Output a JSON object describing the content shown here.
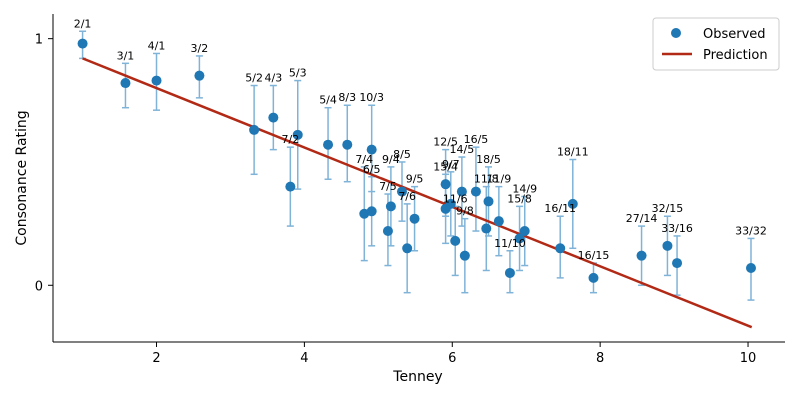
{
  "chart_data": {
    "type": "scatter",
    "xlabel": "Tenney",
    "ylabel": "Consonance Rating",
    "xlim": [
      0.6,
      10.5
    ],
    "ylim": [
      -0.23,
      1.1
    ],
    "xticks": [
      2,
      4,
      6,
      8,
      10
    ],
    "yticks": [
      0,
      1
    ],
    "legend": {
      "placement": "top-right",
      "observed": "Observed",
      "prediction": "Prediction"
    },
    "colors": {
      "points": "#1f77b4",
      "errorbars": "#7fb3d8",
      "prediction": "#b22a16"
    },
    "prediction_line": {
      "x": [
        1.0,
        10.05
      ],
      "y": [
        0.92,
        -0.17
      ]
    },
    "points": [
      {
        "label": "2/1",
        "x": 1.0,
        "y": 0.98,
        "lo": 0.92,
        "hi": 1.03
      },
      {
        "label": "3/1",
        "x": 1.58,
        "y": 0.82,
        "lo": 0.72,
        "hi": 0.9
      },
      {
        "label": "4/1",
        "x": 2.0,
        "y": 0.83,
        "lo": 0.71,
        "hi": 0.94
      },
      {
        "label": "3/2",
        "x": 2.58,
        "y": 0.85,
        "lo": 0.76,
        "hi": 0.93
      },
      {
        "label": "5/2",
        "x": 3.32,
        "y": 0.63,
        "lo": 0.45,
        "hi": 0.81
      },
      {
        "label": "4/3",
        "x": 3.58,
        "y": 0.68,
        "lo": 0.55,
        "hi": 0.81
      },
      {
        "label": "7/2",
        "x": 3.81,
        "y": 0.4,
        "lo": 0.24,
        "hi": 0.56
      },
      {
        "label": "5/3",
        "x": 3.91,
        "y": 0.61,
        "lo": 0.39,
        "hi": 0.83
      },
      {
        "label": "5/4",
        "x": 4.32,
        "y": 0.57,
        "lo": 0.43,
        "hi": 0.72
      },
      {
        "label": "8/3",
        "x": 4.58,
        "y": 0.57,
        "lo": 0.42,
        "hi": 0.73
      },
      {
        "label": "10/3",
        "x": 4.91,
        "y": 0.55,
        "lo": 0.38,
        "hi": 0.73
      },
      {
        "label": "7/4",
        "x": 4.81,
        "y": 0.29,
        "lo": 0.1,
        "hi": 0.48
      },
      {
        "label": "6/5",
        "x": 4.91,
        "y": 0.3,
        "lo": 0.16,
        "hi": 0.44
      },
      {
        "label": "9/4",
        "x": 5.17,
        "y": 0.32,
        "lo": 0.16,
        "hi": 0.48
      },
      {
        "label": "8/5",
        "x": 5.32,
        "y": 0.38,
        "lo": 0.26,
        "hi": 0.5
      },
      {
        "label": "7/5",
        "x": 5.13,
        "y": 0.22,
        "lo": 0.08,
        "hi": 0.37
      },
      {
        "label": "7/6",
        "x": 5.39,
        "y": 0.15,
        "lo": -0.03,
        "hi": 0.33
      },
      {
        "label": "9/5",
        "x": 5.49,
        "y": 0.27,
        "lo": 0.14,
        "hi": 0.4
      },
      {
        "label": "12/5",
        "x": 5.91,
        "y": 0.41,
        "lo": 0.28,
        "hi": 0.55
      },
      {
        "label": "14/5",
        "x": 6.13,
        "y": 0.38,
        "lo": 0.24,
        "hi": 0.52
      },
      {
        "label": "9/7",
        "x": 5.98,
        "y": 0.33,
        "lo": 0.2,
        "hi": 0.46
      },
      {
        "label": "15/4",
        "x": 5.91,
        "y": 0.31,
        "lo": 0.17,
        "hi": 0.45
      },
      {
        "label": "16/5",
        "x": 6.32,
        "y": 0.38,
        "lo": 0.22,
        "hi": 0.56
      },
      {
        "label": "11/6",
        "x": 6.04,
        "y": 0.18,
        "lo": 0.04,
        "hi": 0.32
      },
      {
        "label": "9/8",
        "x": 6.17,
        "y": 0.12,
        "lo": -0.03,
        "hi": 0.27
      },
      {
        "label": "18/5",
        "x": 6.49,
        "y": 0.34,
        "lo": 0.2,
        "hi": 0.48
      },
      {
        "label": "11/9",
        "x": 6.63,
        "y": 0.26,
        "lo": 0.12,
        "hi": 0.4
      },
      {
        "label": "11/8",
        "x": 6.46,
        "y": 0.23,
        "lo": 0.06,
        "hi": 0.4
      },
      {
        "label": "11/10",
        "x": 6.78,
        "y": 0.05,
        "lo": -0.03,
        "hi": 0.14
      },
      {
        "label": "14/9",
        "x": 6.98,
        "y": 0.22,
        "lo": 0.08,
        "hi": 0.36
      },
      {
        "label": "15/8",
        "x": 6.91,
        "y": 0.19,
        "lo": 0.06,
        "hi": 0.32
      },
      {
        "label": "16/11",
        "x": 7.46,
        "y": 0.15,
        "lo": 0.03,
        "hi": 0.28
      },
      {
        "label": "18/11",
        "x": 7.63,
        "y": 0.33,
        "lo": 0.15,
        "hi": 0.51
      },
      {
        "label": "16/15",
        "x": 7.91,
        "y": 0.03,
        "lo": -0.03,
        "hi": 0.09
      },
      {
        "label": "27/14",
        "x": 8.56,
        "y": 0.12,
        "lo": 0.0,
        "hi": 0.24
      },
      {
        "label": "32/15",
        "x": 8.91,
        "y": 0.16,
        "lo": 0.04,
        "hi": 0.28
      },
      {
        "label": "33/16",
        "x": 9.04,
        "y": 0.09,
        "lo": -0.04,
        "hi": 0.2
      },
      {
        "label": "33/32",
        "x": 10.04,
        "y": 0.07,
        "lo": -0.06,
        "hi": 0.19
      }
    ]
  }
}
